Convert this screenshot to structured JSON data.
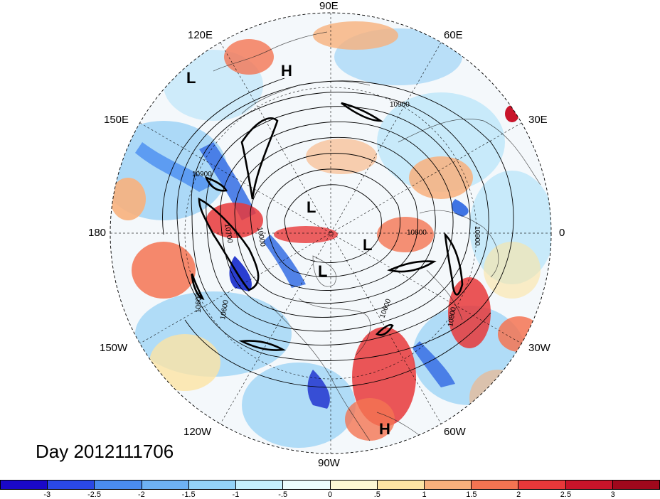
{
  "map": {
    "date_label": "Day 2012111706",
    "longitude_labels": [
      {
        "text": "90E",
        "pos": "top"
      },
      {
        "text": "60E",
        "pos": "upper-right"
      },
      {
        "text": "30E",
        "pos": "right-upper"
      },
      {
        "text": "0",
        "pos": "right"
      },
      {
        "text": "30W",
        "pos": "right-lower"
      },
      {
        "text": "60W",
        "pos": "lower-right"
      },
      {
        "text": "90W",
        "pos": "bottom"
      },
      {
        "text": "120W",
        "pos": "lower-left"
      },
      {
        "text": "150W",
        "pos": "left-lower"
      },
      {
        "text": "180",
        "pos": "left"
      },
      {
        "text": "150E",
        "pos": "left-upper"
      },
      {
        "text": "120E",
        "pos": "upper-left"
      }
    ],
    "pressure_centers": [
      {
        "type": "L"
      },
      {
        "type": "H"
      },
      {
        "type": "L"
      },
      {
        "type": "L"
      },
      {
        "type": "L"
      },
      {
        "type": "H"
      }
    ],
    "contour_labels": [
      "10900",
      "10900",
      "10700",
      "10000",
      "10800",
      "10900",
      "10600",
      "10600",
      "10800",
      "10600"
    ],
    "colorbar": {
      "tick_labels": [
        "-3",
        "-2.5",
        "-2",
        "-1.5",
        "-1",
        "-.5",
        "0",
        ".5",
        "1",
        "1.5",
        "2",
        "2.5",
        "3"
      ],
      "colors": [
        "#1a08c8",
        "#2a48e6",
        "#4a8cf0",
        "#6eb2f4",
        "#94d4f8",
        "#c6f0fc",
        "#ecfcfc",
        "#fcf8d4",
        "#fce4a4",
        "#f8b07c",
        "#f47452",
        "#e8383a",
        "#c8142a",
        "#a0081c"
      ]
    }
  }
}
